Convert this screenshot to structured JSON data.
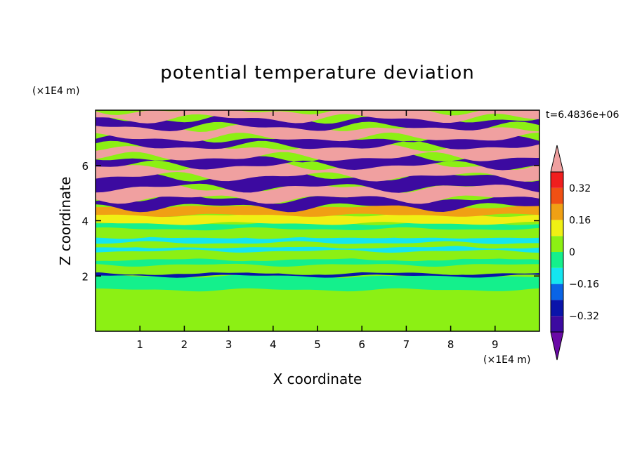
{
  "chart_data": {
    "type": "heatmap",
    "title": "potential temperature deviation",
    "xlabel": "X coordinate",
    "ylabel": "Z coordinate",
    "x_unit": "(×1E4 m)",
    "y_unit": "(×1E4 m)",
    "time_label": "t=6.4836e+06",
    "xlim": [
      0,
      10
    ],
    "ylim": [
      0,
      8
    ],
    "x_ticks": [
      "1",
      "2",
      "3",
      "4",
      "5",
      "6",
      "7",
      "8",
      "9"
    ],
    "y_ticks": [
      "2",
      "4",
      "6"
    ],
    "colorbar": {
      "levels": [
        -0.4,
        -0.32,
        -0.24,
        -0.16,
        -0.08,
        0,
        0.08,
        0.16,
        0.24,
        0.32,
        0.4
      ],
      "labels": [
        "0.32",
        "0.16",
        "0",
        "−0.16",
        "−0.32"
      ],
      "label_values": [
        0.32,
        0.16,
        0,
        -0.16,
        -0.32
      ],
      "colors": [
        "#6a0aa6",
        "#3c0aa0",
        "#0a14aa",
        "#0a64e6",
        "#14e6f0",
        "#14f08c",
        "#8cf014",
        "#f0f014",
        "#f0a014",
        "#f05014",
        "#f01e1e",
        "#f0a0a0"
      ]
    },
    "bands": [
      {
        "z0": 0.0,
        "z1": 1.5,
        "value": 0.02
      },
      {
        "z0": 1.5,
        "z1": 2.0,
        "value": -0.02
      },
      {
        "z0": 2.0,
        "z1": 2.1,
        "value": -0.3
      },
      {
        "z0": 2.1,
        "z1": 2.4,
        "value": 0.04
      },
      {
        "z0": 2.4,
        "z1": 2.6,
        "value": -0.06
      },
      {
        "z0": 2.6,
        "z1": 2.9,
        "value": 0.03
      },
      {
        "z0": 2.9,
        "z1": 3.05,
        "value": -0.1
      },
      {
        "z0": 3.05,
        "z1": 3.2,
        "value": 0.05
      },
      {
        "z0": 3.2,
        "z1": 3.4,
        "value": -0.12
      },
      {
        "z0": 3.4,
        "z1": 3.7,
        "value": 0.03
      },
      {
        "z0": 3.7,
        "z1": 3.9,
        "value": -0.08
      },
      {
        "z0": 3.9,
        "z1": 4.2,
        "value": 0.1
      },
      {
        "z0": 4.2,
        "z1": 4.5,
        "value": 0.2
      },
      {
        "z0": 4.5,
        "z1": 4.8,
        "value": -0.38
      },
      {
        "z0": 4.8,
        "z1": 5.2,
        "value": 0.42
      },
      {
        "z0": 5.2,
        "z1": 5.6,
        "value": -0.38
      },
      {
        "z0": 5.6,
        "z1": 6.0,
        "value": 0.42
      },
      {
        "z0": 6.0,
        "z1": 6.3,
        "value": -0.38
      },
      {
        "z0": 6.3,
        "z1": 6.7,
        "value": 0.42
      },
      {
        "z0": 6.7,
        "z1": 7.0,
        "value": -0.38
      },
      {
        "z0": 7.0,
        "z1": 7.4,
        "value": 0.42
      },
      {
        "z0": 7.4,
        "z1": 7.7,
        "value": -0.38
      },
      {
        "z0": 7.7,
        "z1": 8.0,
        "value": 0.42
      }
    ]
  }
}
